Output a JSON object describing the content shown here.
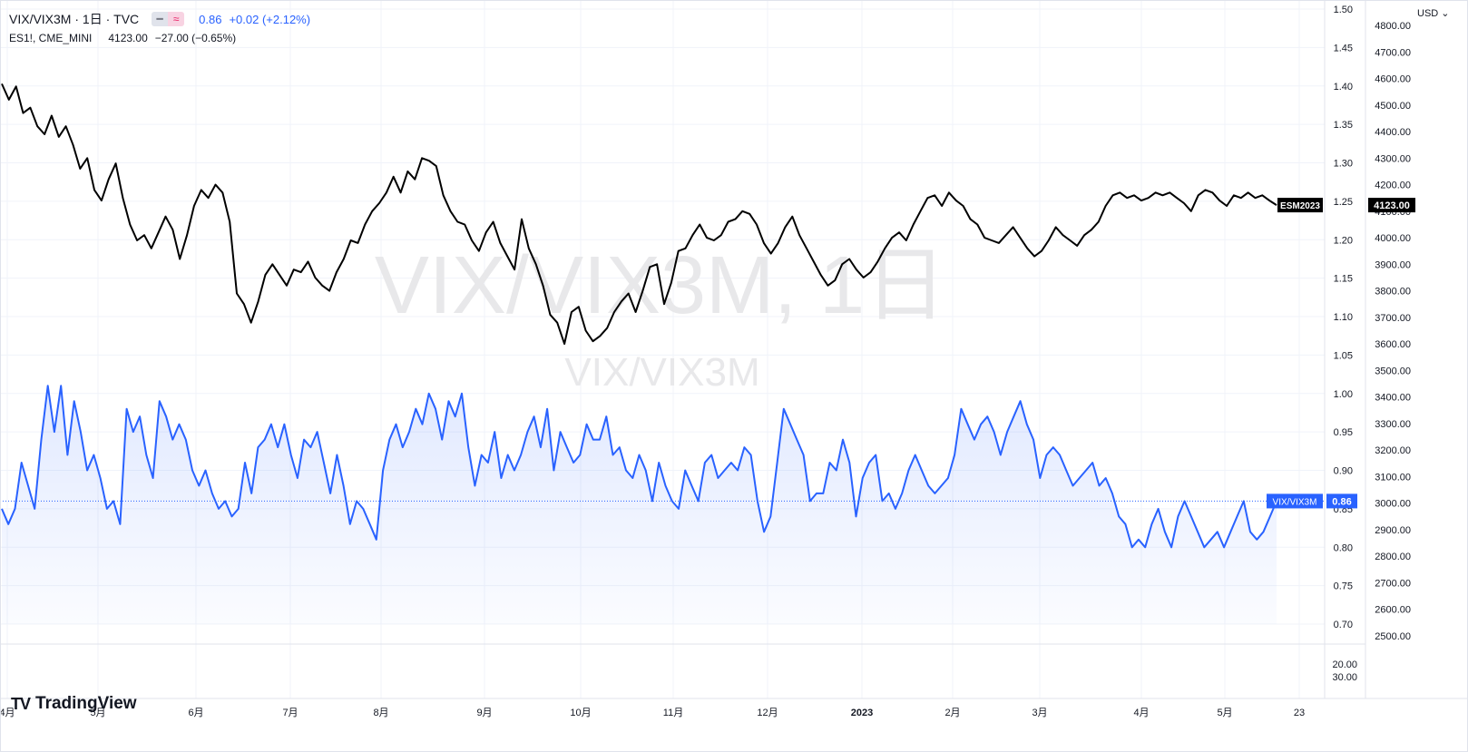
{
  "legend": {
    "main_symbol": "VIX/VIX3M · 1日 · TVC",
    "main_value": "0.86",
    "main_change": "+0.02 (+2.12%)",
    "compare_symbol": "ES1!, CME_MINI",
    "compare_value": "4123.00",
    "compare_change": "−27.00 (−0.65%)",
    "badge_left": "━",
    "badge_right": "≈"
  },
  "currency_menu": "USD ⌄",
  "watermark": {
    "main": "VIX/VIX3M, 1日",
    "sub": "VIX/VIX3M"
  },
  "branding": {
    "logo_text": "TradingView",
    "logo_mark": "TV"
  },
  "colors": {
    "main_series": "#2962ff",
    "compare_series": "#000000",
    "grid": "#f0f3fa",
    "axis_text": "#131722",
    "watermark": "#e8e8ea"
  },
  "chart_data": {
    "type": "line",
    "x_axis_labels": [
      "4月",
      "5月",
      "6月",
      "7月",
      "8月",
      "9月",
      "10月",
      "11月",
      "12月",
      "2023",
      "2月",
      "3月",
      "4月",
      "5月",
      "23"
    ],
    "series": [
      {
        "name": "VIX/VIX3M",
        "axis": "right-inner",
        "last_label": "0.86",
        "tag": "VIX/VIX3M",
        "style": "area",
        "values": [
          0.85,
          0.83,
          0.85,
          0.91,
          0.88,
          0.85,
          0.94,
          1.01,
          0.95,
          1.01,
          0.92,
          0.99,
          0.95,
          0.9,
          0.92,
          0.89,
          0.85,
          0.86,
          0.83,
          0.98,
          0.95,
          0.97,
          0.92,
          0.89,
          0.99,
          0.97,
          0.94,
          0.96,
          0.94,
          0.9,
          0.88,
          0.9,
          0.87,
          0.85,
          0.86,
          0.84,
          0.85,
          0.91,
          0.87,
          0.93,
          0.94,
          0.96,
          0.93,
          0.96,
          0.92,
          0.89,
          0.94,
          0.93,
          0.95,
          0.91,
          0.87,
          0.92,
          0.88,
          0.83,
          0.86,
          0.85,
          0.83,
          0.81,
          0.9,
          0.94,
          0.96,
          0.93,
          0.95,
          0.98,
          0.96,
          1.0,
          0.98,
          0.94,
          0.99,
          0.97,
          1.0,
          0.93,
          0.88,
          0.92,
          0.91,
          0.95,
          0.89,
          0.92,
          0.9,
          0.92,
          0.95,
          0.97,
          0.93,
          0.98,
          0.9,
          0.95,
          0.93,
          0.91,
          0.92,
          0.96,
          0.94,
          0.94,
          0.97,
          0.92,
          0.93,
          0.9,
          0.89,
          0.92,
          0.9,
          0.86,
          0.91,
          0.88,
          0.86,
          0.85,
          0.9,
          0.88,
          0.86,
          0.91,
          0.92,
          0.89,
          0.9,
          0.91,
          0.9,
          0.93,
          0.92,
          0.86,
          0.82,
          0.84,
          0.91,
          0.98,
          0.96,
          0.94,
          0.92,
          0.86,
          0.87,
          0.87,
          0.91,
          0.9,
          0.94,
          0.91,
          0.84,
          0.89,
          0.91,
          0.92,
          0.86,
          0.87,
          0.85,
          0.87,
          0.9,
          0.92,
          0.9,
          0.88,
          0.87,
          0.88,
          0.89,
          0.92,
          0.98,
          0.96,
          0.94,
          0.96,
          0.97,
          0.95,
          0.92,
          0.95,
          0.97,
          0.99,
          0.96,
          0.94,
          0.89,
          0.92,
          0.93,
          0.92,
          0.9,
          0.88,
          0.89,
          0.9,
          0.91,
          0.88,
          0.89,
          0.87,
          0.84,
          0.83,
          0.8,
          0.81,
          0.8,
          0.83,
          0.85,
          0.82,
          0.8,
          0.84,
          0.86,
          0.84,
          0.82,
          0.8,
          0.81,
          0.82,
          0.8,
          0.82,
          0.84,
          0.86,
          0.82,
          0.81,
          0.82,
          0.84,
          0.86
        ],
        "color": "#2962ff"
      },
      {
        "name": "ES1!, CME_MINI",
        "axis": "right-outer",
        "last_label": "4123.00",
        "tag": "ESM2023",
        "style": "line",
        "values": [
          4580,
          4520,
          4570,
          4470,
          4490,
          4420,
          4390,
          4460,
          4380,
          4420,
          4350,
          4260,
          4300,
          4180,
          4140,
          4220,
          4280,
          4150,
          4050,
          3990,
          4010,
          3960,
          4020,
          4080,
          4030,
          3920,
          4010,
          4120,
          4180,
          4150,
          4200,
          4170,
          4060,
          3790,
          3750,
          3680,
          3760,
          3860,
          3900,
          3860,
          3820,
          3880,
          3870,
          3910,
          3850,
          3820,
          3800,
          3870,
          3920,
          3990,
          3980,
          4050,
          4100,
          4130,
          4170,
          4230,
          4170,
          4250,
          4220,
          4300,
          4290,
          4270,
          4160,
          4100,
          4060,
          4050,
          3990,
          3950,
          4020,
          4060,
          3980,
          3930,
          3880,
          4070,
          3960,
          3900,
          3820,
          3710,
          3680,
          3600,
          3720,
          3740,
          3650,
          3610,
          3630,
          3660,
          3720,
          3760,
          3790,
          3720,
          3800,
          3890,
          3900,
          3750,
          3830,
          3950,
          3960,
          4010,
          4050,
          4000,
          3990,
          4010,
          4060,
          4070,
          4100,
          4090,
          4050,
          3980,
          3940,
          3980,
          4040,
          4080,
          4010,
          3960,
          3910,
          3860,
          3820,
          3840,
          3900,
          3920,
          3880,
          3850,
          3870,
          3910,
          3960,
          4000,
          4020,
          3990,
          4050,
          4100,
          4150,
          4160,
          4120,
          4170,
          4140,
          4120,
          4070,
          4050,
          4000,
          3990,
          3980,
          4010,
          4040,
          4000,
          3960,
          3930,
          3950,
          3990,
          4040,
          4010,
          3990,
          3970,
          4010,
          4030,
          4060,
          4120,
          4160,
          4170,
          4150,
          4160,
          4140,
          4150,
          4170,
          4160,
          4170,
          4150,
          4130,
          4100,
          4160,
          4180,
          4170,
          4140,
          4120,
          4160,
          4150,
          4170,
          4150,
          4160,
          4140,
          4123
        ],
        "color": "#000000"
      }
    ],
    "inner_axis": {
      "ticks": [
        "1.50",
        "1.45",
        "1.40",
        "1.35",
        "1.30",
        "1.25",
        "1.20",
        "1.15",
        "1.10",
        "1.05",
        "1.00",
        "0.95",
        "0.90",
        "0.85",
        "0.80",
        "0.75",
        "0.70"
      ]
    },
    "outer_axis": {
      "ticks": [
        "4800.00",
        "4700.00",
        "4600.00",
        "4500.00",
        "4400.00",
        "4300.00",
        "4200.00",
        "4100.00",
        "4000.00",
        "3900.00",
        "3800.00",
        "3700.00",
        "3600.00",
        "3500.00",
        "3400.00",
        "3300.00",
        "3200.00",
        "3100.00",
        "3000.00",
        "2900.00",
        "2800.00",
        "2700.00",
        "2600.00",
        "2500.00"
      ]
    },
    "lower_pane_ticks": [
      "20.00",
      "30.00"
    ],
    "grid": true
  }
}
